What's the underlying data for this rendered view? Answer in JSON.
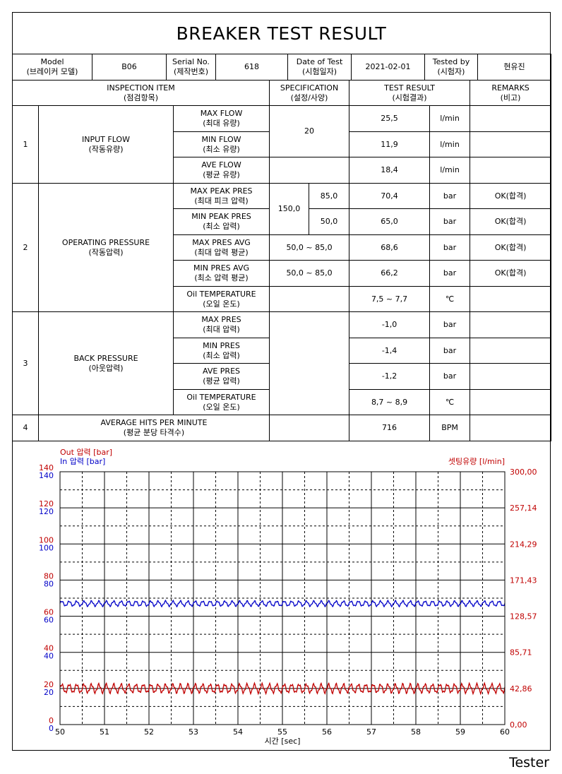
{
  "title": "BREAKER TEST RESULT",
  "header": {
    "model_label": [
      "Model",
      "(브레이커 모델)"
    ],
    "model_value": "B06",
    "serial_label": [
      "Serial No.",
      "(제작번호)"
    ],
    "serial_value": "618",
    "date_label": [
      "Date of Test",
      "(시험일자)"
    ],
    "date_value": "2021-02-01",
    "tester_label": [
      "Tested by",
      "(시험자)"
    ],
    "tester_value": "현유진"
  },
  "columns": {
    "item": [
      "INSPECTION ITEM",
      "(점검항목)"
    ],
    "spec": [
      "SPECIFICATION",
      "(설정/사양)"
    ],
    "result": [
      "TEST RESULT",
      "(시험결과)"
    ],
    "remarks": [
      "REMARKS",
      "(비고)"
    ]
  },
  "sections": [
    {
      "no": "1",
      "name": [
        "INPUT FLOW",
        "(작동유량)"
      ],
      "rows": [
        {
          "item": [
            "MAX FLOW",
            "(최대 유량)"
          ],
          "value": "25,5",
          "unit": "l/min",
          "remark": ""
        },
        {
          "item": [
            "MIN FLOW",
            "(최소 유량)"
          ],
          "value": "11,9",
          "unit": "l/min",
          "remark": ""
        },
        {
          "item": [
            "AVE FLOW",
            "(평균 유량)"
          ],
          "value": "18,4",
          "unit": "l/min",
          "remark": ""
        }
      ],
      "spec_flow": "20"
    },
    {
      "no": "2",
      "name": [
        "OPERATING PRESSURE",
        "(작동압력)"
      ],
      "rows": [
        {
          "item": [
            "MAX PEAK PRES",
            "(최대 피크 압력)"
          ],
          "value": "70,4",
          "unit": "bar",
          "remark": "OK(합격)"
        },
        {
          "item": [
            "MIN PEAK PRES",
            "(최소 압력)"
          ],
          "value": "65,0",
          "unit": "bar",
          "remark": "OK(합격)"
        },
        {
          "item": [
            "MAX PRES AVG",
            "(최대 압력 평균)"
          ],
          "value": "68,6",
          "unit": "bar",
          "remark": "OK(합격)"
        },
        {
          "item": [
            "MIN PRES AVG",
            "(최소 압력 평균)"
          ],
          "value": "66,2",
          "unit": "bar",
          "remark": "OK(합격)"
        },
        {
          "item": [
            "Oil TEMPERATURE",
            "(오일 온도)"
          ],
          "value": "7,5 ~ 7,7",
          "unit": "℃",
          "remark": ""
        }
      ],
      "spec_peak": "150,0",
      "spec_peak_max": "85,0",
      "spec_peak_min": "50,0",
      "spec_avg_max": "50,0 ~ 85,0",
      "spec_avg_min": "50,0 ~ 85,0"
    },
    {
      "no": "3",
      "name": [
        "BACK PRESSURE",
        "(아웃압력)"
      ],
      "rows": [
        {
          "item": [
            "MAX PRES",
            "(최대 압력)"
          ],
          "value": "-1,0",
          "unit": "bar",
          "remark": ""
        },
        {
          "item": [
            "MIN PRES",
            "(최소 압력)"
          ],
          "value": "-1,4",
          "unit": "bar",
          "remark": ""
        },
        {
          "item": [
            "AVE PRES",
            "(평균 압력)"
          ],
          "value": "-1,2",
          "unit": "bar",
          "remark": ""
        },
        {
          "item": [
            "Oil TEMPERATURE",
            "(오일 온도)"
          ],
          "value": "8,7 ~ 8,9",
          "unit": "℃",
          "remark": ""
        }
      ]
    },
    {
      "no": "4",
      "name": [
        "AVERAGE HITS PER MINUTE",
        "(평균 분당 타격수)"
      ],
      "value": "716",
      "unit": "BPM",
      "remark": ""
    }
  ],
  "chart_data": {
    "type": "line",
    "xlabel": "시간 [sec]",
    "xlim": [
      50,
      60
    ],
    "x_ticks": [
      "50",
      "51",
      "52",
      "53",
      "54",
      "55",
      "56",
      "57",
      "58",
      "59",
      "60"
    ],
    "left_axis_out": {
      "label": "Out 압력 [bar]",
      "ticks": [
        "0",
        "20",
        "40",
        "60",
        "80",
        "100",
        "120",
        "140"
      ],
      "color": "#c00000"
    },
    "left_axis_in": {
      "label": "In 압력 [bar]",
      "ticks": [
        "0",
        "20",
        "40",
        "60",
        "80",
        "100",
        "120",
        "140"
      ],
      "color": "#0000c8"
    },
    "right_axis": {
      "label": "셋팅유량 [l/min]",
      "ticks": [
        "0,00",
        "42,86",
        "85,71",
        "128,57",
        "171,43",
        "214,29",
        "257,14",
        "300,00"
      ],
      "color": "#c00000"
    },
    "ylim": [
      0,
      140
    ],
    "grid": true,
    "series": [
      {
        "name": "In 압력 [bar]",
        "color": "#0000c8",
        "mean": 67,
        "amplitude": 1.3
      },
      {
        "name": "셋팅유량 [l/min]",
        "color": "#c00000",
        "axis": "right",
        "mean": 20,
        "amplitude": 2.2
      }
    ]
  },
  "footer_label": "Tester"
}
